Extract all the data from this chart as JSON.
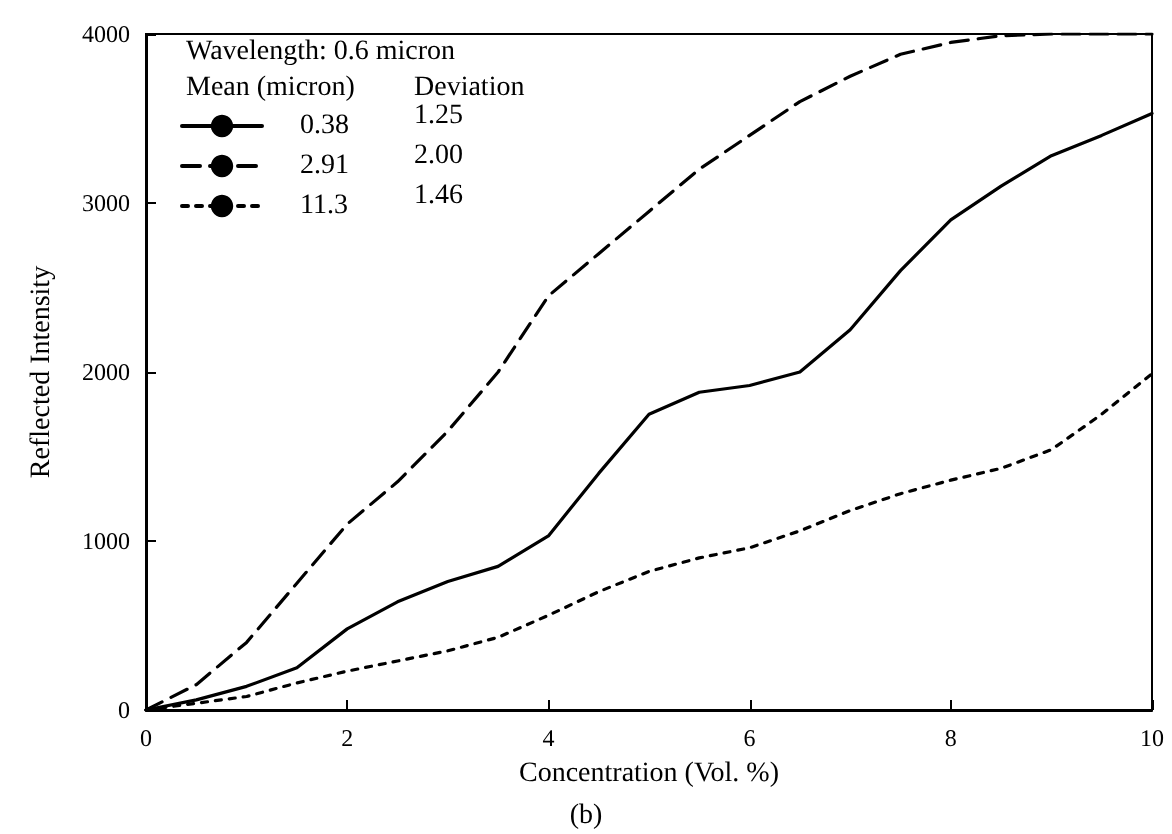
{
  "chart_data": {
    "type": "line",
    "xlabel": "Concentration (Vol. %)",
    "ylabel": "Reflected Intensity",
    "legend_title": "Wavelength: 0.6 micron",
    "annotations": [
      "Mean (micron)",
      "Deviation",
      "1.25",
      "2.00",
      "1.46",
      "(b)"
    ],
    "x": [
      0,
      0.5,
      1,
      1.5,
      2,
      2.5,
      3,
      3.5,
      4,
      4.5,
      5,
      5.5,
      6,
      6.5,
      7,
      7.5,
      8,
      8.5,
      9,
      9.5,
      10
    ],
    "series": [
      {
        "name": "0.38",
        "color": "#000000",
        "line_style": "solid",
        "values": [
          0,
          60,
          140,
          250,
          480,
          640,
          760,
          850,
          1030,
          1400,
          1750,
          1880,
          1920,
          2000,
          2250,
          2600,
          2900,
          3100,
          3280,
          3400,
          3530
        ]
      },
      {
        "name": "2.91",
        "color": "#000000",
        "line_style": "dashed",
        "values": [
          0,
          150,
          400,
          750,
          1100,
          1350,
          1650,
          2000,
          2450,
          2700,
          2950,
          3200,
          3400,
          3600,
          3750,
          3880,
          3950,
          3990,
          4000,
          4000,
          4000
        ]
      },
      {
        "name": "11.3",
        "color": "#000000",
        "line_style": "dotted",
        "values": [
          0,
          40,
          80,
          160,
          230,
          290,
          350,
          430,
          560,
          700,
          820,
          900,
          960,
          1060,
          1180,
          1280,
          1360,
          1430,
          1540,
          1750,
          1990
        ]
      }
    ],
    "xlim": [
      0,
      10
    ],
    "xticks": [
      0,
      2,
      4,
      6,
      8,
      10
    ],
    "ylim": [
      0,
      4000
    ],
    "yticks": [
      0,
      1000,
      2000,
      3000,
      4000
    ],
    "grid": false,
    "legend": "top left",
    "marker": "none"
  }
}
